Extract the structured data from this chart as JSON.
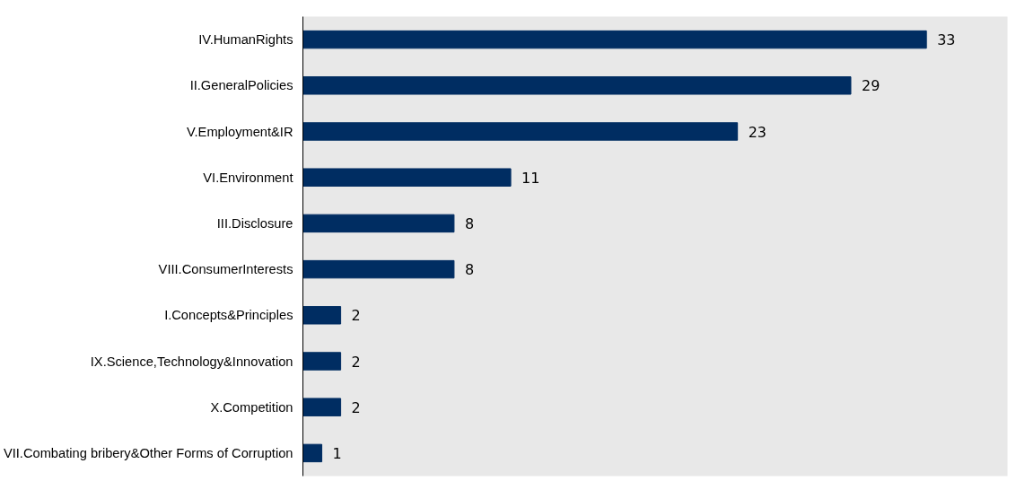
{
  "chart_data": {
    "type": "bar",
    "orientation": "horizontal",
    "categories": [
      "IV.HumanRights",
      "II.GeneralPolicies",
      "V.Employment&IR",
      "VI.Environment",
      "III.Disclosure",
      "VIII.ConsumerInterests",
      "I.Concepts&Principles",
      "IX.Science,Technology&Innovation",
      "X.Competition",
      "VII.Combating bribery&Other Forms of Corruption"
    ],
    "values": [
      33,
      29,
      23,
      11,
      8,
      8,
      2,
      2,
      2,
      1
    ],
    "color": "#002d62",
    "data_labels": true,
    "tick_labels": "y"
  }
}
